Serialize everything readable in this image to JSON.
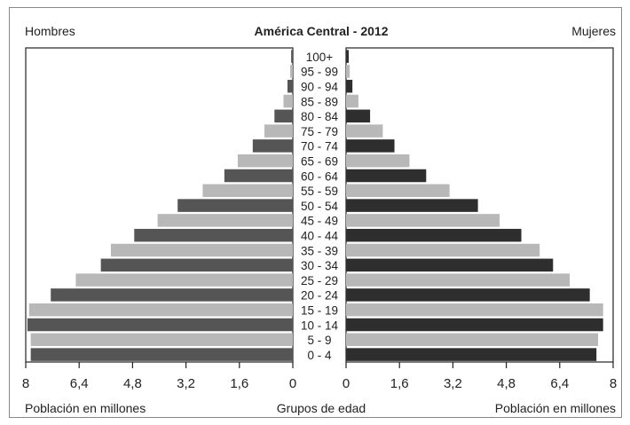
{
  "chart_data": {
    "type": "bar",
    "subtype": "population-pyramid",
    "title": "América Central - 2012",
    "left_label": "Hombres",
    "right_label": "Mujeres",
    "xlabel_left": "Población en millones",
    "xlabel_center": "Grupos de edad",
    "xlabel_right": "Población en millones",
    "xlim": [
      0,
      8
    ],
    "x_ticks_left": [
      "8",
      "6,4",
      "4,8",
      "3,2",
      "1,6",
      "0"
    ],
    "x_ticks_right": [
      "0",
      "1,6",
      "3,2",
      "4,8",
      "6,4",
      "8"
    ],
    "x_tick_values": [
      0,
      1.6,
      3.2,
      4.8,
      6.4,
      8
    ],
    "categories": [
      "0 - 4",
      "5 - 9",
      "10 - 14",
      "15 - 19",
      "20 - 24",
      "25 - 29",
      "30 - 34",
      "35 - 39",
      "40 - 44",
      "45 - 49",
      "50 - 54",
      "55 - 59",
      "60 - 64",
      "65 - 69",
      "70 - 74",
      "75 - 79",
      "80 - 84",
      "85 - 89",
      "90 - 94",
      "95 - 99",
      "100+"
    ],
    "series": [
      {
        "name": "Hombres",
        "values": [
          7.85,
          7.85,
          7.95,
          7.9,
          7.25,
          6.5,
          5.75,
          5.45,
          4.75,
          4.05,
          3.45,
          2.7,
          2.05,
          1.65,
          1.2,
          0.85,
          0.55,
          0.28,
          0.16,
          0.08,
          0.05
        ]
      },
      {
        "name": "Mujeres",
        "values": [
          7.5,
          7.55,
          7.7,
          7.7,
          7.3,
          6.7,
          6.2,
          5.8,
          5.25,
          4.6,
          3.95,
          3.1,
          2.4,
          1.9,
          1.45,
          1.1,
          0.72,
          0.37,
          0.19,
          0.11,
          0.08
        ]
      }
    ],
    "colors": {
      "dark": "#555555",
      "light": "#b8b8b8",
      "women_dark": "#2e2e2e",
      "frame": "#222222"
    }
  }
}
